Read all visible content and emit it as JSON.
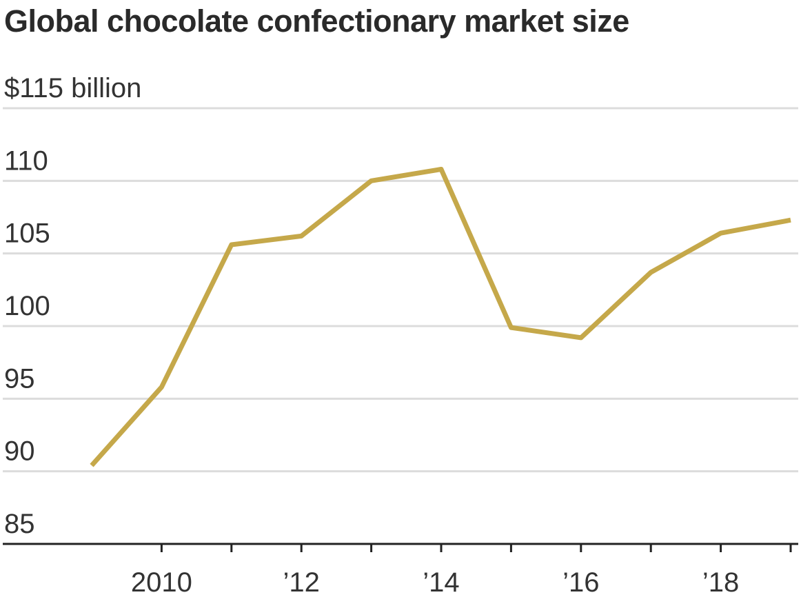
{
  "chart_data": {
    "type": "line",
    "title": "Global chocolate confectionary market size",
    "ylabel_unit": "$115 billion",
    "x": [
      2009,
      2010,
      2011,
      2012,
      2013,
      2014,
      2015,
      2016,
      2017,
      2018,
      2019
    ],
    "series": [
      {
        "values": [
          90.4,
          95.8,
          105.6,
          106.2,
          110.0,
          110.8,
          99.9,
          99.2,
          103.7,
          106.4,
          107.3
        ]
      }
    ],
    "xlim": [
      2009,
      2019
    ],
    "ylim": [
      85,
      115
    ],
    "yticks": [
      {
        "value": 115,
        "label": "$115 billion"
      },
      {
        "value": 110,
        "label": "110"
      },
      {
        "value": 105,
        "label": "105"
      },
      {
        "value": 100,
        "label": "100"
      },
      {
        "value": 95,
        "label": "95"
      },
      {
        "value": 90,
        "label": "90"
      },
      {
        "value": 85,
        "label": "85"
      }
    ],
    "xticks": [
      2010,
      2011,
      2012,
      2013,
      2014,
      2015,
      2016,
      2017,
      2018,
      2019
    ],
    "xtick_labels": [
      {
        "value": 2010,
        "label": "2010"
      },
      {
        "value": 2012,
        "label": "’12"
      },
      {
        "value": 2014,
        "label": "’14"
      },
      {
        "value": 2016,
        "label": "’16"
      },
      {
        "value": 2018,
        "label": "’18"
      }
    ],
    "grid": true,
    "colors": {
      "line": "#c5a84a",
      "grid": "#dcdcdc",
      "axis": "#222222",
      "text": "#333333"
    }
  }
}
